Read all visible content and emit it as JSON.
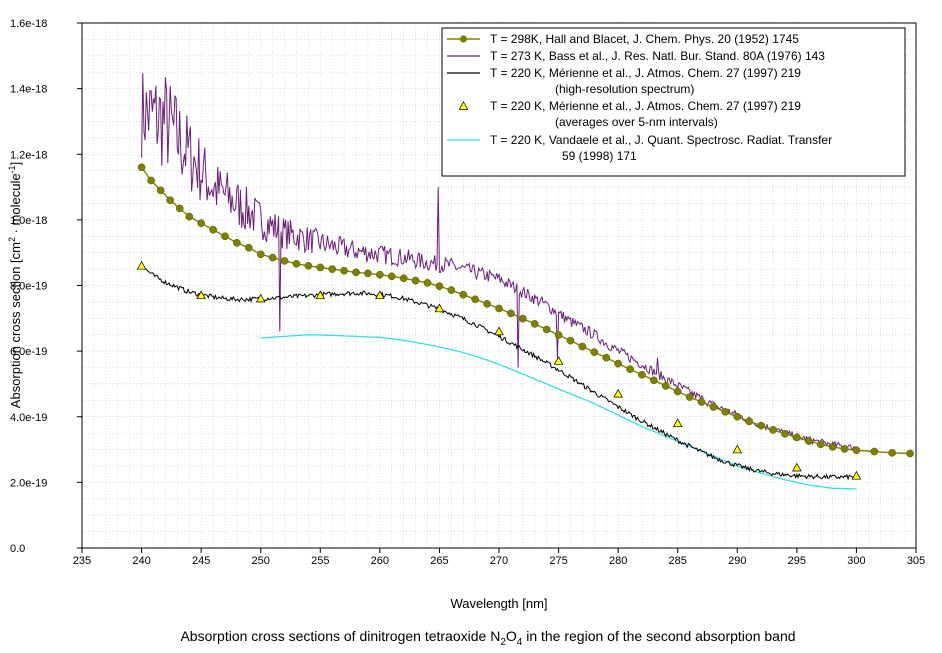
{
  "chart_data": {
    "type": "line",
    "title": "",
    "caption": {
      "prefix": "Absorption cross sections of dinitrogen tetraoxide N",
      "sub1": "2",
      "mid": "O",
      "sub2": "4",
      "suffix": " in the region of the second absorption band"
    },
    "xlabel": "Wavelength [nm]",
    "ylabel": {
      "text": "Absorption cross section [cm",
      "sup1": "2",
      "mid": " · molecule",
      "sup2": "-1",
      "end": "]"
    },
    "xlim": [
      235,
      305
    ],
    "ylim": [
      0,
      1.6e-18
    ],
    "x_ticks": [
      "235",
      "240",
      "245",
      "250",
      "255",
      "260",
      "265",
      "270",
      "275",
      "280",
      "285",
      "290",
      "295",
      "300",
      "305"
    ],
    "y_ticks": [
      "0.0",
      "2.0e-19",
      "4.0e-19",
      "6.0e-19",
      "8.0e-19",
      "1.0e-18",
      "1.2e-18",
      "1.4e-18",
      "1.6e-18"
    ],
    "grid": true,
    "legend_position": "top-right",
    "series": [
      {
        "name": "Hall and Blacet 298K",
        "legend_lines": [
          "T = 298K, Hall and Blacet, J. Chem. Phys. 20 (1952) 1745"
        ],
        "color": "#808000",
        "marker": "circle",
        "x": [
          240,
          240.8,
          241.6,
          242.4,
          243.2,
          244,
          245,
          246,
          247,
          248,
          249,
          250,
          251,
          252,
          253,
          254,
          255,
          256,
          257,
          258,
          259,
          260,
          261,
          262,
          263,
          264,
          265,
          266,
          267,
          268,
          269,
          270,
          271,
          272,
          273,
          274,
          275,
          276,
          277,
          278,
          279,
          280,
          281,
          282,
          283,
          284,
          285,
          286,
          287,
          288,
          289,
          290,
          291,
          292,
          293,
          294,
          295,
          296,
          297,
          298,
          299,
          300,
          301.5,
          303,
          304.5
        ],
        "y": [
          1.16e-18,
          1.12e-18,
          1.09e-18,
          1.06e-18,
          1.035e-18,
          1.01e-18,
          9.9e-19,
          9.7e-19,
          9.5e-19,
          9.3e-19,
          9.15e-19,
          8.95e-19,
          8.85e-19,
          8.75e-19,
          8.66e-19,
          8.6e-19,
          8.55e-19,
          8.5e-19,
          8.45e-19,
          8.4e-19,
          8.37e-19,
          8.33e-19,
          8.28e-19,
          8.22e-19,
          8.15e-19,
          8.08e-19,
          7.98e-19,
          7.86e-19,
          7.72e-19,
          7.58e-19,
          7.44e-19,
          7.3e-19,
          7.15e-19,
          6.99e-19,
          6.83e-19,
          6.66e-19,
          6.49e-19,
          6.32e-19,
          6.14e-19,
          5.97e-19,
          5.8e-19,
          5.62e-19,
          5.45e-19,
          5.28e-19,
          5.11e-19,
          4.94e-19,
          4.77e-19,
          4.6e-19,
          4.45e-19,
          4.3e-19,
          4.15e-19,
          4e-19,
          3.86e-19,
          3.73e-19,
          3.6e-19,
          3.48e-19,
          3.37e-19,
          3.26e-19,
          3.16e-19,
          3.08e-19,
          3.02e-19,
          2.98e-19,
          2.94e-19,
          2.9e-19,
          2.88e-19
        ]
      },
      {
        "name": "Bass et al. 273 K",
        "legend_lines": [
          "T = 273 K, Bass et al., J. Res. Natl. Bur. Stand. 80A (1976) 143"
        ],
        "color": "#6b1f7a",
        "marker": "none",
        "x_start": 240,
        "x_end": 300,
        "base_x": [
          240,
          242,
          244,
          246,
          248,
          250,
          252,
          254,
          256,
          258,
          260,
          262,
          264,
          266,
          268,
          270,
          272,
          274,
          276,
          278,
          280,
          282,
          284,
          286,
          288,
          290,
          292,
          294,
          296,
          298,
          300
        ],
        "base_y": [
          1.33e-18,
          1.3e-18,
          1.2e-18,
          1.1e-18,
          1.05e-18,
          1e-18,
          9.6e-19,
          9.4e-19,
          9.2e-19,
          9.05e-19,
          8.95e-19,
          8.85e-19,
          8.7e-19,
          8.6e-19,
          8.4e-19,
          8.2e-19,
          7.8e-19,
          7.4e-19,
          6.9e-19,
          6.5e-19,
          6e-19,
          5.6e-19,
          5.15e-19,
          4.75e-19,
          4.35e-19,
          4.05e-19,
          3.75e-19,
          3.5e-19,
          3.3e-19,
          3.15e-19,
          3.05e-19
        ],
        "noise_x": [
          240,
          242,
          244,
          246,
          248,
          250,
          252,
          256,
          260,
          265,
          270,
          275,
          280,
          290,
          300
        ],
        "noise_y": [
          1.4e-19,
          1.6e-19,
          1.2e-19,
          9e-20,
          8e-20,
          6e-20,
          5e-20,
          3.5e-20,
          3e-20,
          2.5e-20,
          2e-20,
          1.8e-20,
          1.6e-20,
          1.2e-20,
          1e-20
        ],
        "spikes": [
          [
            251.6,
            6.6e-19
          ],
          [
            264.9,
            1.1e-18
          ],
          [
            271.6,
            5.5e-19
          ],
          [
            274.9,
            5.8e-19
          ],
          [
            283.3,
            5.8e-19
          ]
        ]
      },
      {
        "name": "Merienne et al. 220 K high-resolution",
        "legend_lines": [
          "T = 220 K, Mérienne et al., J. Atmos. Chem. 27 (1997) 219",
          "(high-resolution spectrum)"
        ],
        "color": "#000000",
        "marker": "none",
        "x": [
          240,
          241,
          242,
          243,
          244,
          245,
          246,
          247,
          248,
          249,
          250,
          251,
          252,
          253,
          254,
          255,
          256,
          257,
          258,
          259,
          260,
          261,
          262,
          263,
          264,
          265,
          266,
          267,
          268,
          269,
          270,
          271,
          272,
          273,
          274,
          275,
          276,
          277,
          278,
          279,
          280,
          281,
          282,
          283,
          284,
          285,
          286,
          287,
          288,
          289,
          290,
          291,
          292,
          293,
          294,
          295,
          296,
          297,
          298,
          299,
          300
        ],
        "y": [
          8.6e-19,
          8.3e-19,
          8.1e-19,
          7.95e-19,
          7.8e-19,
          7.72e-19,
          7.65e-19,
          7.6e-19,
          7.58e-19,
          7.58e-19,
          7.6e-19,
          7.62e-19,
          7.64e-19,
          7.67e-19,
          7.69e-19,
          7.72e-19,
          7.74e-19,
          7.76e-19,
          7.77e-19,
          7.76e-19,
          7.73e-19,
          7.68e-19,
          7.6e-19,
          7.5e-19,
          7.4e-19,
          7.28e-19,
          7.14e-19,
          6.98e-19,
          6.82e-19,
          6.63e-19,
          6.45e-19,
          6.25e-19,
          6.05e-19,
          5.85e-19,
          5.64e-19,
          5.43e-19,
          5.2e-19,
          4.97e-19,
          4.74e-19,
          4.52e-19,
          4.3e-19,
          4.08e-19,
          3.87e-19,
          3.67e-19,
          3.47e-19,
          3.28e-19,
          3.1e-19,
          2.93e-19,
          2.77e-19,
          2.63e-19,
          2.51e-19,
          2.41e-19,
          2.33e-19,
          2.27e-19,
          2.23e-19,
          2.2e-19,
          2.18e-19,
          2.17e-19,
          2.16e-19,
          2.16e-19,
          2.17e-19
        ],
        "noise": 7e-21
      },
      {
        "name": "Merienne et al. 220 K averages",
        "legend_lines": [
          "T = 220 K, Mérienne et al., J. Atmos. Chem. 27 (1997) 219",
          "(averages over 5-nm intervals)"
        ],
        "color": "#ffff00",
        "marker": "triangle",
        "x": [
          240,
          245,
          250,
          255,
          260,
          265,
          270,
          275,
          280,
          285,
          290,
          295,
          300
        ],
        "y": [
          8.6e-19,
          7.7e-19,
          7.6e-19,
          7.7e-19,
          7.7e-19,
          7.3e-19,
          6.6e-19,
          5.7e-19,
          4.7e-19,
          3.8e-19,
          3e-19,
          2.45e-19,
          2.2e-19
        ]
      },
      {
        "name": "Vandaele et al. 220 K",
        "legend_lines": [
          "T = 220 K, Vandaele et al., J. Quant. Spectrosc. Radiat. Transfer",
          "59 (1998) 171"
        ],
        "color": "#33e0e8",
        "marker": "none",
        "x": [
          250,
          252,
          254,
          256,
          258,
          260,
          262,
          264,
          266,
          268,
          270,
          272,
          274,
          276,
          278,
          280,
          282,
          284,
          286,
          288,
          290,
          292,
          294,
          296,
          298,
          300
        ],
        "y": [
          6.4e-19,
          6.45e-19,
          6.5e-19,
          6.48e-19,
          6.45e-19,
          6.42e-19,
          6.33e-19,
          6.2e-19,
          6.05e-19,
          5.85e-19,
          5.6e-19,
          5.3e-19,
          5e-19,
          4.7e-19,
          4.4e-19,
          4.05e-19,
          3.7e-19,
          3.4e-19,
          3.1e-19,
          2.8e-19,
          2.5e-19,
          2.28e-19,
          2.08e-19,
          1.92e-19,
          1.82e-19,
          1.8e-19
        ]
      }
    ]
  }
}
